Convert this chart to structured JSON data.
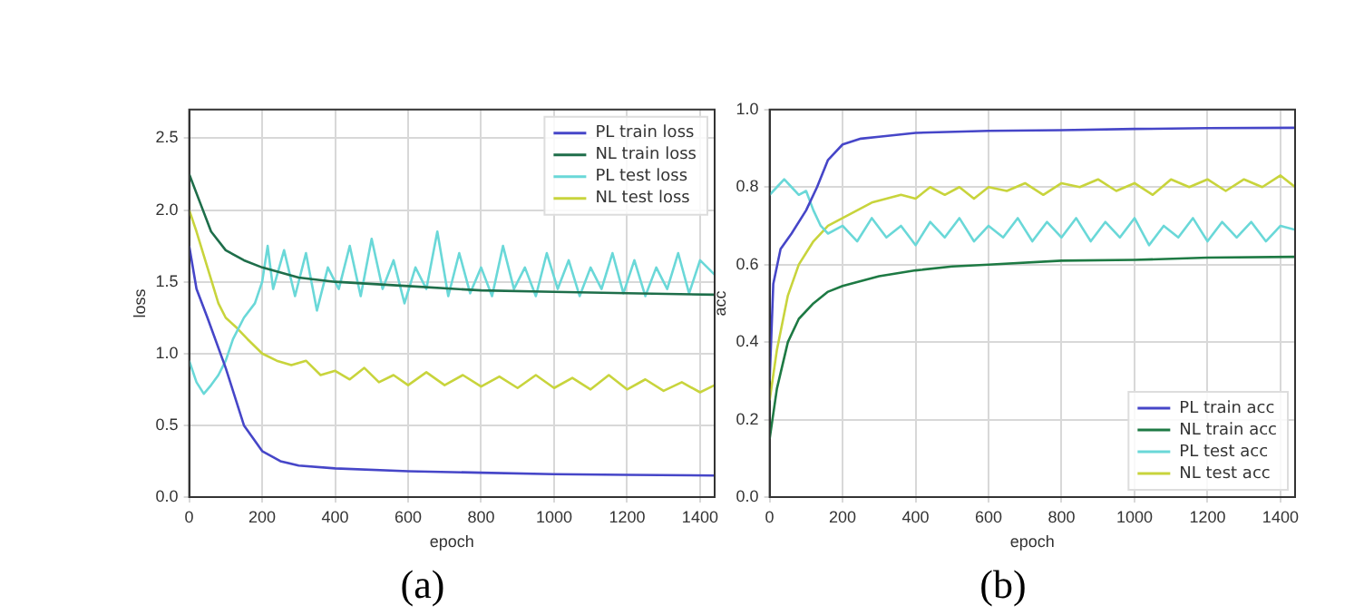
{
  "chart_data": [
    {
      "type": "line",
      "title": "(a)",
      "xlabel": "epoch",
      "ylabel": "loss",
      "xlim": [
        0,
        1440
      ],
      "xticks": [
        0,
        200,
        400,
        600,
        800,
        1000,
        1200,
        1400
      ],
      "ylim": [
        0,
        2.7
      ],
      "yticks": [
        {
          "value": 0,
          "label": "0.0"
        },
        {
          "value": 0.5,
          "label": "0.5"
        },
        {
          "value": 1,
          "label": "1.0"
        },
        {
          "value": 1.5,
          "label": "1.5"
        },
        {
          "value": 2,
          "label": "2.0"
        },
        {
          "value": 2.5,
          "label": "2.5"
        }
      ],
      "grid": true,
      "legend": "top right",
      "series": [
        {
          "name": "PL train loss",
          "color": "#4646c8",
          "x": [
            0,
            20,
            50,
            100,
            150,
            200,
            250,
            300,
            400,
            600,
            800,
            1000,
            1200,
            1440
          ],
          "values": [
            1.75,
            1.45,
            1.25,
            0.9,
            0.5,
            0.32,
            0.25,
            0.22,
            0.2,
            0.18,
            0.17,
            0.16,
            0.155,
            0.15
          ]
        },
        {
          "name": "NL train loss",
          "color": "#1e6e4a",
          "x": [
            0,
            30,
            60,
            100,
            150,
            200,
            300,
            400,
            600,
            800,
            1000,
            1200,
            1440
          ],
          "values": [
            2.25,
            2.05,
            1.85,
            1.72,
            1.65,
            1.6,
            1.53,
            1.5,
            1.47,
            1.44,
            1.43,
            1.42,
            1.41
          ]
        },
        {
          "name": "PL test loss",
          "color": "#6ad8d8",
          "x": [
            0,
            20,
            40,
            60,
            80,
            100,
            120,
            150,
            180,
            200,
            215,
            230,
            260,
            290,
            320,
            350,
            380,
            410,
            440,
            470,
            500,
            530,
            560,
            590,
            620,
            650,
            680,
            710,
            740,
            770,
            800,
            830,
            860,
            890,
            920,
            950,
            980,
            1010,
            1040,
            1070,
            1100,
            1130,
            1160,
            1190,
            1220,
            1250,
            1280,
            1310,
            1340,
            1370,
            1400,
            1440
          ],
          "values": [
            0.95,
            0.8,
            0.72,
            0.78,
            0.85,
            0.95,
            1.1,
            1.25,
            1.35,
            1.5,
            1.75,
            1.45,
            1.72,
            1.4,
            1.7,
            1.3,
            1.6,
            1.45,
            1.75,
            1.4,
            1.8,
            1.45,
            1.65,
            1.35,
            1.6,
            1.45,
            1.85,
            1.4,
            1.7,
            1.42,
            1.6,
            1.4,
            1.75,
            1.45,
            1.6,
            1.4,
            1.7,
            1.45,
            1.65,
            1.4,
            1.6,
            1.45,
            1.7,
            1.42,
            1.65,
            1.4,
            1.6,
            1.45,
            1.7,
            1.42,
            1.65,
            1.55
          ]
        },
        {
          "name": "NL test loss",
          "color": "#c8d43c",
          "x": [
            0,
            20,
            50,
            80,
            100,
            130,
            160,
            200,
            240,
            280,
            320,
            360,
            400,
            440,
            480,
            520,
            560,
            600,
            650,
            700,
            750,
            800,
            850,
            900,
            950,
            1000,
            1050,
            1100,
            1150,
            1200,
            1250,
            1300,
            1350,
            1400,
            1440
          ],
          "values": [
            2.0,
            1.85,
            1.6,
            1.35,
            1.25,
            1.18,
            1.1,
            1.0,
            0.95,
            0.92,
            0.95,
            0.85,
            0.88,
            0.82,
            0.9,
            0.8,
            0.85,
            0.78,
            0.87,
            0.78,
            0.85,
            0.77,
            0.84,
            0.76,
            0.85,
            0.76,
            0.83,
            0.75,
            0.85,
            0.75,
            0.82,
            0.74,
            0.8,
            0.73,
            0.78
          ]
        }
      ]
    },
    {
      "type": "line",
      "title": "(b)",
      "xlabel": "epoch",
      "ylabel": "acc",
      "xlim": [
        0,
        1440
      ],
      "xticks": [
        0,
        200,
        400,
        600,
        800,
        1000,
        1200,
        1400
      ],
      "ylim": [
        0,
        1
      ],
      "yticks": [
        {
          "value": 0,
          "label": "0.0"
        },
        {
          "value": 0.2,
          "label": "0.2"
        },
        {
          "value": 0.4,
          "label": "0.4"
        },
        {
          "value": 0.6,
          "label": "0.6"
        },
        {
          "value": 0.8,
          "label": "0.8"
        },
        {
          "value": 1,
          "label": "1.0"
        }
      ],
      "grid": true,
      "legend": "bottom right",
      "series": [
        {
          "name": "PL train acc",
          "color": "#4646c8",
          "x": [
            0,
            10,
            30,
            60,
            100,
            130,
            160,
            200,
            250,
            300,
            400,
            600,
            800,
            1000,
            1200,
            1440
          ],
          "values": [
            0.3,
            0.55,
            0.64,
            0.68,
            0.74,
            0.8,
            0.87,
            0.91,
            0.925,
            0.93,
            0.94,
            0.945,
            0.947,
            0.95,
            0.952,
            0.953
          ]
        },
        {
          "name": "NL train acc",
          "color": "#1e7a44",
          "x": [
            0,
            20,
            50,
            80,
            120,
            160,
            200,
            300,
            400,
            500,
            600,
            800,
            1000,
            1200,
            1440
          ],
          "values": [
            0.15,
            0.28,
            0.4,
            0.46,
            0.5,
            0.53,
            0.545,
            0.57,
            0.585,
            0.595,
            0.6,
            0.61,
            0.612,
            0.618,
            0.62
          ]
        },
        {
          "name": "PL test acc",
          "color": "#6ad8d8",
          "x": [
            0,
            20,
            40,
            60,
            80,
            100,
            120,
            140,
            160,
            200,
            240,
            280,
            320,
            360,
            400,
            440,
            480,
            520,
            560,
            600,
            640,
            680,
            720,
            760,
            800,
            840,
            880,
            920,
            960,
            1000,
            1040,
            1080,
            1120,
            1160,
            1200,
            1240,
            1280,
            1320,
            1360,
            1400,
            1440
          ],
          "values": [
            0.78,
            0.8,
            0.82,
            0.8,
            0.78,
            0.79,
            0.74,
            0.7,
            0.68,
            0.7,
            0.66,
            0.72,
            0.67,
            0.7,
            0.65,
            0.71,
            0.67,
            0.72,
            0.66,
            0.7,
            0.67,
            0.72,
            0.66,
            0.71,
            0.67,
            0.72,
            0.66,
            0.71,
            0.67,
            0.72,
            0.65,
            0.7,
            0.67,
            0.72,
            0.66,
            0.71,
            0.67,
            0.71,
            0.66,
            0.7,
            0.69
          ]
        },
        {
          "name": "NL test acc",
          "color": "#c8d43c",
          "x": [
            0,
            20,
            50,
            80,
            120,
            160,
            200,
            240,
            280,
            320,
            360,
            400,
            440,
            480,
            520,
            560,
            600,
            650,
            700,
            750,
            800,
            850,
            900,
            950,
            1000,
            1050,
            1100,
            1150,
            1200,
            1250,
            1300,
            1350,
            1400,
            1440
          ],
          "values": [
            0.25,
            0.38,
            0.52,
            0.6,
            0.66,
            0.7,
            0.72,
            0.74,
            0.76,
            0.77,
            0.78,
            0.77,
            0.8,
            0.78,
            0.8,
            0.77,
            0.8,
            0.79,
            0.81,
            0.78,
            0.81,
            0.8,
            0.82,
            0.79,
            0.81,
            0.78,
            0.82,
            0.8,
            0.82,
            0.79,
            0.82,
            0.8,
            0.83,
            0.8
          ]
        }
      ]
    }
  ]
}
